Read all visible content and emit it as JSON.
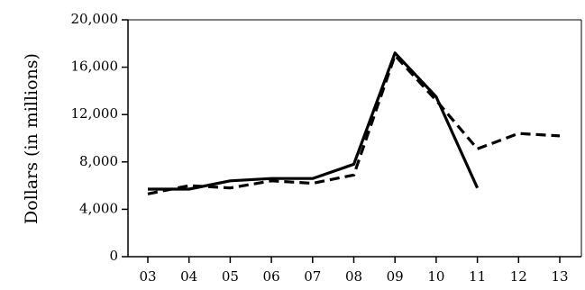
{
  "chart_data": {
    "type": "line",
    "title": "",
    "xlabel": "",
    "ylabel": "Dollars (in millions)",
    "categories": [
      "03",
      "04",
      "05",
      "06",
      "07",
      "08",
      "09",
      "10",
      "11",
      "12",
      "13"
    ],
    "ylim": [
      0,
      20000
    ],
    "yticks": [
      "0",
      "4,000",
      "8,000",
      "12,000",
      "16,000",
      "20,000"
    ],
    "ytick_values": [
      0,
      4000,
      8000,
      12000,
      16000,
      20000
    ],
    "grid": false,
    "legend": "none",
    "series": [
      {
        "style": "solid",
        "color": "#000000",
        "values": [
          5700,
          5700,
          6400,
          6600,
          6600,
          7800,
          17200,
          13500,
          5800,
          null,
          null
        ]
      },
      {
        "style": "dashed",
        "color": "#000000",
        "values": [
          5300,
          6000,
          5800,
          6400,
          6200,
          6900,
          17000,
          13200,
          9100,
          10400,
          10200
        ]
      }
    ]
  }
}
